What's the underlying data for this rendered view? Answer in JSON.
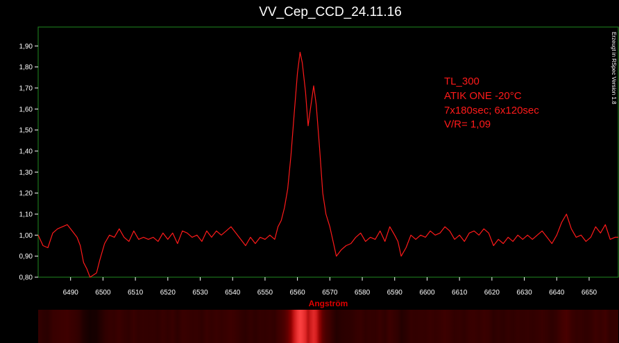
{
  "chart_data": {
    "type": "line",
    "title": "VV_Cep_CCD_24.11.16",
    "xlabel": "Angström",
    "ylabel": "",
    "xlim": [
      6480,
      6659
    ],
    "ylim": [
      0.8,
      1.99
    ],
    "x_ticks": [
      6490,
      6500,
      6510,
      6520,
      6530,
      6540,
      6550,
      6560,
      6570,
      6580,
      6590,
      6600,
      6610,
      6620,
      6630,
      6640,
      6650
    ],
    "y_ticks": [
      "0,80",
      "0,90",
      "1,00",
      "1,10",
      "1,20",
      "1,30",
      "1,40",
      "1,50",
      "1,60",
      "1,70",
      "1,80",
      "1,90"
    ],
    "y_tick_values": [
      0.8,
      0.9,
      1.0,
      1.1,
      1.2,
      1.3,
      1.4,
      1.5,
      1.6,
      1.7,
      1.8,
      1.9
    ],
    "grid": false,
    "series": [
      {
        "color": "#ff1a1a",
        "points": [
          [
            6480.0,
            1.0
          ],
          [
            6481.5,
            0.95
          ],
          [
            6483.0,
            0.94
          ],
          [
            6484.5,
            1.01
          ],
          [
            6486.0,
            1.03
          ],
          [
            6487.5,
            1.04
          ],
          [
            6489.0,
            1.05
          ],
          [
            6490.5,
            1.02
          ],
          [
            6492.0,
            0.99
          ],
          [
            6493.0,
            0.95
          ],
          [
            6494.0,
            0.87
          ],
          [
            6495.0,
            0.84
          ],
          [
            6496.0,
            0.8
          ],
          [
            6497.0,
            0.81
          ],
          [
            6498.0,
            0.82
          ],
          [
            6499.0,
            0.88
          ],
          [
            6500.5,
            0.96
          ],
          [
            6502.0,
            1.0
          ],
          [
            6503.5,
            0.99
          ],
          [
            6505.0,
            1.03
          ],
          [
            6506.5,
            0.99
          ],
          [
            6508.0,
            0.97
          ],
          [
            6509.5,
            1.02
          ],
          [
            6511.0,
            0.98
          ],
          [
            6512.5,
            0.99
          ],
          [
            6514.0,
            0.98
          ],
          [
            6515.5,
            0.99
          ],
          [
            6517.0,
            0.97
          ],
          [
            6518.5,
            1.01
          ],
          [
            6520.0,
            0.98
          ],
          [
            6521.5,
            1.01
          ],
          [
            6523.0,
            0.96
          ],
          [
            6524.5,
            1.02
          ],
          [
            6526.0,
            1.01
          ],
          [
            6527.5,
            0.99
          ],
          [
            6529.0,
            1.0
          ],
          [
            6530.5,
            0.97
          ],
          [
            6532.0,
            1.02
          ],
          [
            6533.5,
            0.99
          ],
          [
            6535.0,
            1.02
          ],
          [
            6536.5,
            1.0
          ],
          [
            6538.0,
            1.02
          ],
          [
            6539.5,
            1.04
          ],
          [
            6541.0,
            1.01
          ],
          [
            6542.5,
            0.98
          ],
          [
            6544.0,
            0.95
          ],
          [
            6545.5,
            0.99
          ],
          [
            6547.0,
            0.96
          ],
          [
            6548.5,
            0.99
          ],
          [
            6550.0,
            0.98
          ],
          [
            6551.5,
            1.0
          ],
          [
            6553.0,
            0.98
          ],
          [
            6554.0,
            1.04
          ],
          [
            6555.0,
            1.07
          ],
          [
            6556.0,
            1.13
          ],
          [
            6557.0,
            1.22
          ],
          [
            6558.0,
            1.38
          ],
          [
            6559.0,
            1.58
          ],
          [
            6560.0,
            1.77
          ],
          [
            6560.8,
            1.87
          ],
          [
            6561.5,
            1.82
          ],
          [
            6562.5,
            1.68
          ],
          [
            6563.3,
            1.52
          ],
          [
            6564.0,
            1.6
          ],
          [
            6565.0,
            1.71
          ],
          [
            6565.8,
            1.62
          ],
          [
            6566.8,
            1.42
          ],
          [
            6567.8,
            1.2
          ],
          [
            6568.8,
            1.1
          ],
          [
            6570.0,
            1.04
          ],
          [
            6571.0,
            0.97
          ],
          [
            6572.0,
            0.9
          ],
          [
            6573.5,
            0.93
          ],
          [
            6575.0,
            0.95
          ],
          [
            6576.5,
            0.96
          ],
          [
            6578.0,
            0.99
          ],
          [
            6579.5,
            1.01
          ],
          [
            6581.0,
            0.97
          ],
          [
            6582.5,
            0.99
          ],
          [
            6584.0,
            0.98
          ],
          [
            6585.5,
            1.02
          ],
          [
            6587.0,
            0.97
          ],
          [
            6588.5,
            1.04
          ],
          [
            6590.0,
            1.0
          ],
          [
            6591.0,
            0.97
          ],
          [
            6592.0,
            0.9
          ],
          [
            6593.5,
            0.94
          ],
          [
            6595.0,
            1.0
          ],
          [
            6596.5,
            0.98
          ],
          [
            6598.0,
            1.0
          ],
          [
            6599.5,
            0.99
          ],
          [
            6601.0,
            1.02
          ],
          [
            6602.5,
            1.0
          ],
          [
            6604.0,
            1.01
          ],
          [
            6605.5,
            1.04
          ],
          [
            6607.0,
            1.02
          ],
          [
            6608.5,
            0.98
          ],
          [
            6610.0,
            1.0
          ],
          [
            6611.5,
            0.97
          ],
          [
            6613.0,
            1.01
          ],
          [
            6614.5,
            1.02
          ],
          [
            6616.0,
            1.0
          ],
          [
            6617.5,
            1.03
          ],
          [
            6619.0,
            1.01
          ],
          [
            6620.5,
            0.95
          ],
          [
            6622.0,
            0.98
          ],
          [
            6623.5,
            0.96
          ],
          [
            6625.0,
            0.99
          ],
          [
            6626.5,
            0.97
          ],
          [
            6628.0,
            1.0
          ],
          [
            6629.5,
            0.98
          ],
          [
            6631.0,
            1.0
          ],
          [
            6632.5,
            0.98
          ],
          [
            6634.0,
            1.0
          ],
          [
            6635.5,
            1.02
          ],
          [
            6637.0,
            0.99
          ],
          [
            6638.5,
            0.96
          ],
          [
            6640.0,
            1.0
          ],
          [
            6641.5,
            1.06
          ],
          [
            6643.0,
            1.1
          ],
          [
            6644.5,
            1.03
          ],
          [
            6646.0,
            0.99
          ],
          [
            6647.5,
            1.0
          ],
          [
            6649.0,
            0.97
          ],
          [
            6650.5,
            0.99
          ],
          [
            6652.0,
            1.04
          ],
          [
            6653.5,
            1.01
          ],
          [
            6655.0,
            1.05
          ],
          [
            6656.5,
            0.98
          ],
          [
            6658.0,
            0.99
          ],
          [
            6659.0,
            0.99
          ]
        ]
      }
    ],
    "annotations": [
      "TL_300",
      "ATIK ONE -20°C",
      "7x180sec; 6x120sec",
      "V/R= 1,09"
    ],
    "side_label": "Erzeugt in RSpec Version 1.8",
    "colors": {
      "background": "#000000",
      "line": "#ff1a1a",
      "frame": "#1f8a1f",
      "xlabel": "#e00000"
    }
  }
}
